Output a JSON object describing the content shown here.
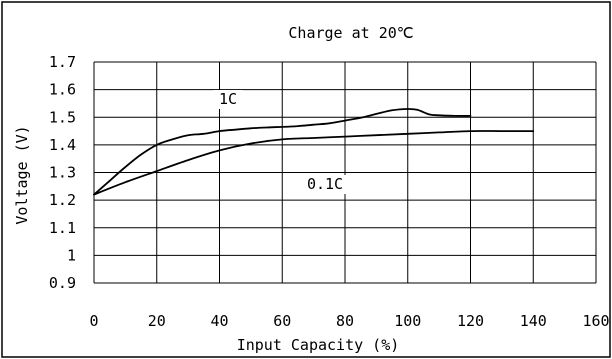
{
  "chart_data": {
    "type": "line",
    "title": "Charge at 20℃",
    "xlabel": "Input Capacity (%)",
    "ylabel": "Voltage (V)",
    "xlim": [
      0,
      160
    ],
    "ylim": [
      0.9,
      1.7
    ],
    "x_ticks": [
      "0",
      "20",
      "40",
      "60",
      "80",
      "100",
      "120",
      "140",
      "160"
    ],
    "y_ticks": [
      "0.9",
      "1",
      "1.1",
      "1.2",
      "1.3",
      "1.4",
      "1.5",
      "1.6",
      "1.7"
    ],
    "grid": true,
    "series": [
      {
        "name": "1C",
        "x": [
          0,
          5,
          10,
          15,
          20,
          25,
          30,
          35,
          40,
          45,
          50,
          55,
          60,
          65,
          70,
          75,
          80,
          85,
          90,
          95,
          100,
          103,
          107,
          110,
          115,
          120
        ],
        "y": [
          1.22,
          1.27,
          1.32,
          1.365,
          1.4,
          1.42,
          1.435,
          1.44,
          1.45,
          1.455,
          1.46,
          1.463,
          1.465,
          1.468,
          1.473,
          1.478,
          1.488,
          1.498,
          1.512,
          1.525,
          1.53,
          1.527,
          1.51,
          1.507,
          1.505,
          1.505
        ]
      },
      {
        "name": "0.1C",
        "x": [
          0,
          10,
          20,
          30,
          40,
          50,
          60,
          70,
          80,
          90,
          100,
          110,
          120,
          130,
          140
        ],
        "y": [
          1.22,
          1.265,
          1.305,
          1.345,
          1.38,
          1.405,
          1.42,
          1.425,
          1.43,
          1.435,
          1.44,
          1.445,
          1.45,
          1.45,
          1.45
        ]
      }
    ]
  }
}
